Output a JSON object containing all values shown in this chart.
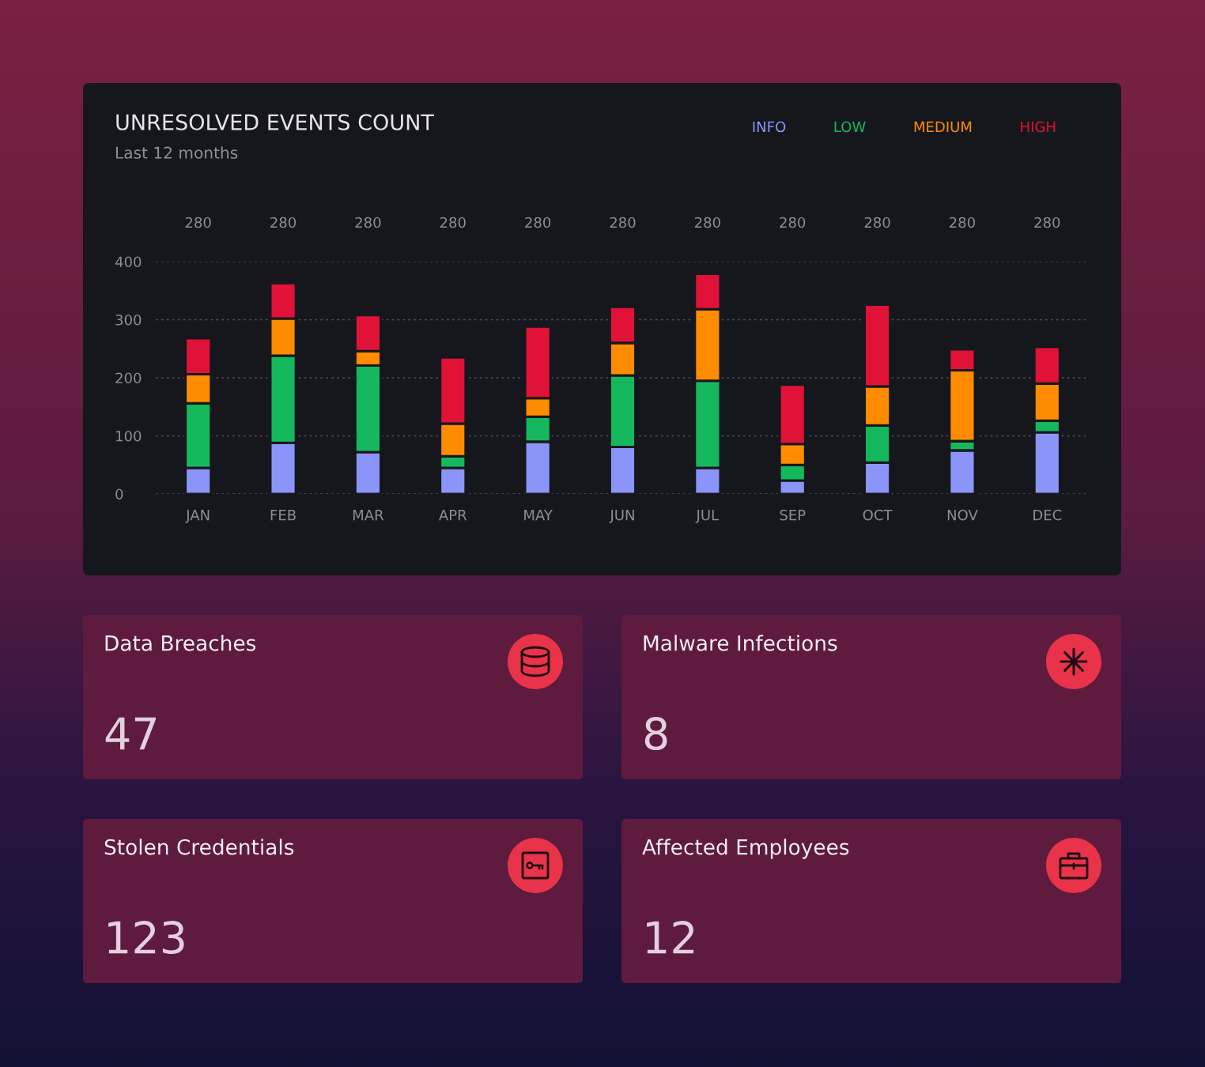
{
  "chart_data": [
    {
      "type": "bar",
      "title": "UNRESOLVED EVENTS COUNT",
      "subtitle": "Last 12 months",
      "categories": [
        "JAN",
        "FEB",
        "MAR",
        "APR",
        "MAY",
        "JUN",
        "JUL",
        "SEP",
        "OCT",
        "NOV",
        "DEC"
      ],
      "stacked": true,
      "series": [
        {
          "name": "INFO",
          "color": "#8b95f9",
          "values": [
            45,
            88,
            72,
            45,
            90,
            81,
            45,
            23,
            54,
            75,
            106
          ]
        },
        {
          "name": "LOW",
          "color": "#16b85e",
          "values": [
            111,
            150,
            149,
            20,
            43,
            123,
            150,
            27,
            64,
            16,
            20
          ]
        },
        {
          "name": "MEDIUM",
          "color": "#ff8c00",
          "values": [
            50,
            64,
            25,
            56,
            32,
            56,
            123,
            36,
            67,
            122,
            64
          ]
        },
        {
          "name": "HIGH",
          "color": "#e01237",
          "values": [
            62,
            61,
            62,
            114,
            123,
            62,
            61,
            102,
            141,
            36,
            63
          ]
        }
      ],
      "annotations": [
        "280",
        "280",
        "280",
        "280",
        "280",
        "280",
        "280",
        "280",
        "280",
        "280",
        "280"
      ],
      "ylim": [
        0,
        400
      ],
      "yticks": [
        0,
        100,
        200,
        300,
        400
      ],
      "grid": "y",
      "legend": "top right"
    },
    {
      "type": "other",
      "title": "Data Breaches",
      "annotations": [
        "47"
      ]
    },
    {
      "type": "other",
      "title": "Malware Infections",
      "annotations": [
        "8"
      ]
    },
    {
      "type": "other",
      "title": "Stolen Credentials",
      "annotations": [
        "123"
      ]
    },
    {
      "type": "other",
      "title": "Affected Employees",
      "annotations": [
        "12"
      ]
    }
  ]
}
